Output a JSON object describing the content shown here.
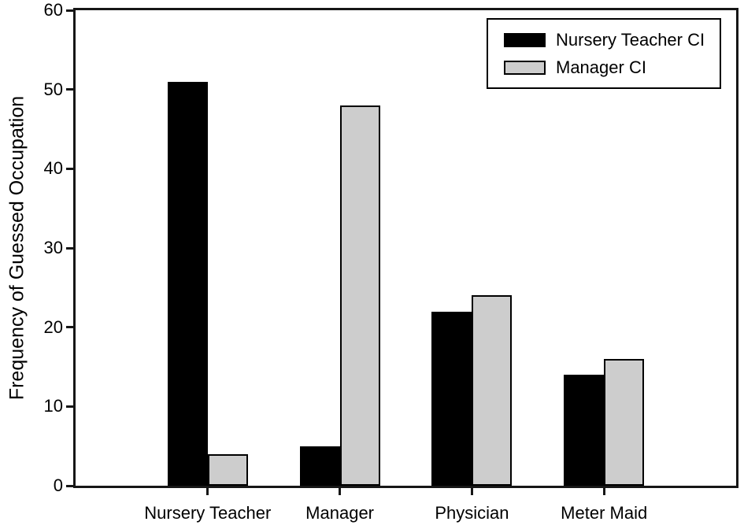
{
  "chart_data": {
    "type": "bar",
    "title": "",
    "xlabel": "",
    "ylabel": "Frequency of Guessed Occupation",
    "ylim": [
      0,
      60
    ],
    "yticks": [
      0,
      10,
      20,
      30,
      40,
      50,
      60
    ],
    "categories": [
      "Nursery Teacher",
      "Manager",
      "Physician",
      "Meter Maid"
    ],
    "series": [
      {
        "name": "Nursery Teacher CI",
        "color": "#000000",
        "values": [
          51,
          5,
          22,
          14
        ]
      },
      {
        "name": "Manager CI",
        "color": "#cdcdcd",
        "values": [
          4,
          48,
          24,
          16
        ]
      }
    ],
    "grid": false,
    "legend_position": "top-right",
    "bar_edge_color": "#000000",
    "axis_color": "#161616"
  }
}
